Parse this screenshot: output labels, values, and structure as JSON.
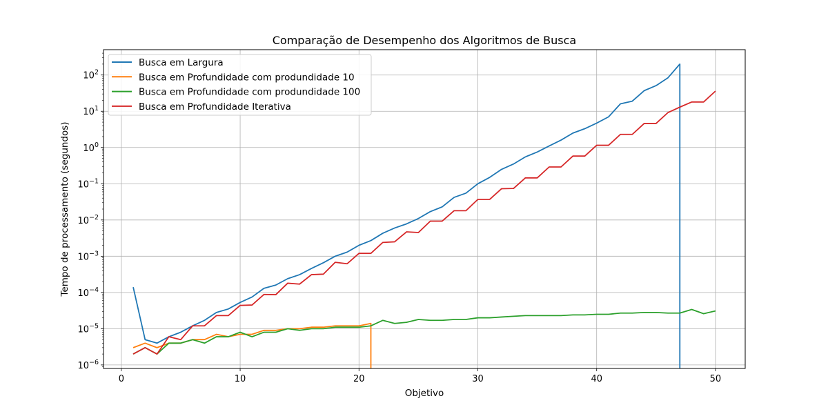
{
  "chart_data": {
    "type": "line",
    "title": "Comparação de Desempenho dos Algoritmos de Busca",
    "xlabel": "Objetivo",
    "ylabel": "Tempo de processamento (segundos)",
    "xlim": [
      -1.5,
      52.5
    ],
    "ylim": [
      8e-07,
      500
    ],
    "yscale": "log",
    "grid": true,
    "legend_position": "top-left",
    "x_ticks": [
      0,
      10,
      20,
      30,
      40,
      50
    ],
    "x_tick_labels": [
      "0",
      "10",
      "20",
      "30",
      "40",
      "50"
    ],
    "y_ticks": [
      1e-06,
      1e-05,
      0.0001,
      0.001,
      0.01,
      0.1,
      1,
      10,
      100
    ],
    "y_tick_labels": [
      {
        "base": "10",
        "exp": "−6"
      },
      {
        "base": "10",
        "exp": "−5"
      },
      {
        "base": "10",
        "exp": "−4"
      },
      {
        "base": "10",
        "exp": "−3"
      },
      {
        "base": "10",
        "exp": "−2"
      },
      {
        "base": "10",
        "exp": "−1"
      },
      {
        "base": "10",
        "exp": "0"
      },
      {
        "base": "10",
        "exp": "1"
      },
      {
        "base": "10",
        "exp": "2"
      }
    ],
    "series": [
      {
        "name": "Busca em Largura",
        "color": "#1f77b4",
        "x": [
          1,
          2,
          3,
          4,
          5,
          6,
          7,
          8,
          9,
          10,
          11,
          12,
          13,
          14,
          15,
          16,
          17,
          18,
          19,
          20,
          21,
          22,
          23,
          24,
          25,
          26,
          27,
          28,
          29,
          30,
          31,
          32,
          33,
          34,
          35,
          36,
          37,
          38,
          39,
          40,
          41,
          42,
          43,
          44,
          45,
          46,
          47
        ],
        "y": [
          0.00014,
          5e-06,
          4e-06,
          6e-06,
          8e-06,
          1.2e-05,
          1.7e-05,
          2.8e-05,
          3.5e-05,
          5.3e-05,
          7.5e-05,
          0.00013,
          0.00016,
          0.00024,
          0.00031,
          0.00046,
          0.00066,
          0.001,
          0.0013,
          0.002,
          0.0027,
          0.0043,
          0.006,
          0.0078,
          0.011,
          0.017,
          0.023,
          0.042,
          0.055,
          0.1,
          0.15,
          0.25,
          0.35,
          0.55,
          0.75,
          1.1,
          1.6,
          2.5,
          3.3,
          4.7,
          7.0,
          16,
          19,
          37,
          51,
          84,
          200
        ],
        "drop_to_axis_after": true
      },
      {
        "name": "Busca em Profundidade com produndidade 10",
        "color": "#ff7f0e",
        "x": [
          1,
          2,
          3,
          4,
          5,
          6,
          7,
          8,
          9,
          10,
          11,
          12,
          13,
          14,
          15,
          16,
          17,
          18,
          19,
          20,
          21
        ],
        "y": [
          3e-06,
          4e-06,
          3e-06,
          4e-06,
          4e-06,
          5e-06,
          5e-06,
          7e-06,
          6e-06,
          7e-06,
          7e-06,
          9e-06,
          9e-06,
          1e-05,
          1e-05,
          1.1e-05,
          1.1e-05,
          1.2e-05,
          1.2e-05,
          1.2e-05,
          1.4e-05
        ],
        "drop_to_axis_after": true
      },
      {
        "name": "Busca em Profundidade com produndidade 100",
        "color": "#2ca02c",
        "x": [
          1,
          2,
          3,
          4,
          5,
          6,
          7,
          8,
          9,
          10,
          11,
          12,
          13,
          14,
          15,
          16,
          17,
          18,
          19,
          20,
          21,
          22,
          23,
          24,
          25,
          26,
          27,
          28,
          29,
          30,
          31,
          32,
          33,
          34,
          35,
          36,
          37,
          38,
          39,
          40,
          41,
          42,
          43,
          44,
          45,
          46,
          47,
          48,
          49,
          50
        ],
        "y": [
          2e-06,
          3e-06,
          2e-06,
          4e-06,
          4e-06,
          5e-06,
          4e-06,
          6e-06,
          6e-06,
          8e-06,
          6e-06,
          8e-06,
          8e-06,
          1e-05,
          9e-06,
          1e-05,
          1e-05,
          1.1e-05,
          1.1e-05,
          1.1e-05,
          1.2e-05,
          1.7e-05,
          1.4e-05,
          1.5e-05,
          1.8e-05,
          1.7e-05,
          1.7e-05,
          1.8e-05,
          1.8e-05,
          2e-05,
          2e-05,
          2.1e-05,
          2.2e-05,
          2.3e-05,
          2.3e-05,
          2.3e-05,
          2.3e-05,
          2.4e-05,
          2.4e-05,
          2.5e-05,
          2.5e-05,
          2.7e-05,
          2.7e-05,
          2.8e-05,
          2.8e-05,
          2.7e-05,
          2.7e-05,
          3.4e-05,
          2.6e-05,
          3.1e-05
        ],
        "drop_to_axis_after": false
      },
      {
        "name": "Busca em Profundidade Iterativa",
        "color": "#d62728",
        "x": [
          1,
          2,
          3,
          4,
          5,
          6,
          7,
          8,
          9,
          10,
          11,
          12,
          13,
          14,
          15,
          16,
          17,
          18,
          19,
          20,
          21,
          22,
          23,
          24,
          25,
          26,
          27,
          28,
          29,
          30,
          31,
          32,
          33,
          34,
          35,
          36,
          37,
          38,
          39,
          40,
          41,
          42,
          43,
          44,
          45,
          46,
          47,
          48,
          49,
          50
        ],
        "y": [
          2e-06,
          3e-06,
          2e-06,
          6e-06,
          5e-06,
          1.2e-05,
          1.2e-05,
          2.3e-05,
          2.3e-05,
          4.4e-05,
          4.5e-05,
          8.8e-05,
          8.7e-05,
          0.00018,
          0.00017,
          0.00031,
          0.00032,
          0.00068,
          0.00062,
          0.0012,
          0.0012,
          0.0024,
          0.0025,
          0.0047,
          0.0045,
          0.0093,
          0.0093,
          0.018,
          0.018,
          0.037,
          0.037,
          0.073,
          0.074,
          0.145,
          0.145,
          0.29,
          0.29,
          0.58,
          0.58,
          1.15,
          1.15,
          2.3,
          2.3,
          4.6,
          4.6,
          9.2,
          13,
          18,
          18,
          36
        ],
        "drop_to_axis_after": false
      }
    ]
  }
}
